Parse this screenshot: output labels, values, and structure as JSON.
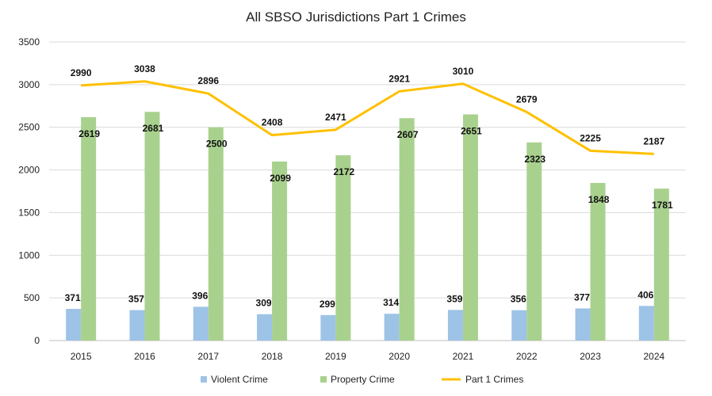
{
  "chart_data": {
    "type": "bar",
    "title": "All SBSO Jurisdictions Part 1 Crimes",
    "categories": [
      "2015",
      "2016",
      "2017",
      "2018",
      "2019",
      "2020",
      "2021",
      "2022",
      "2023",
      "2024"
    ],
    "series": [
      {
        "name": "Violent Crime",
        "type": "bar",
        "color": "#9DC3E6",
        "values": [
          371,
          357,
          396,
          309,
          299,
          314,
          359,
          356,
          377,
          406
        ]
      },
      {
        "name": "Property Crime",
        "type": "bar",
        "color": "#A9D18E",
        "values": [
          2619,
          2681,
          2500,
          2099,
          2172,
          2607,
          2651,
          2323,
          1848,
          1781
        ]
      },
      {
        "name": "Part 1 Crimes",
        "type": "line",
        "color": "#FFC000",
        "values": [
          2990,
          3038,
          2896,
          2408,
          2471,
          2921,
          3010,
          2679,
          2225,
          2187
        ]
      }
    ],
    "ylim": [
      0,
      3500
    ],
    "yticks": [
      0,
      500,
      1000,
      1500,
      2000,
      2500,
      3000,
      3500
    ],
    "grid": true,
    "legend": "bottom"
  }
}
